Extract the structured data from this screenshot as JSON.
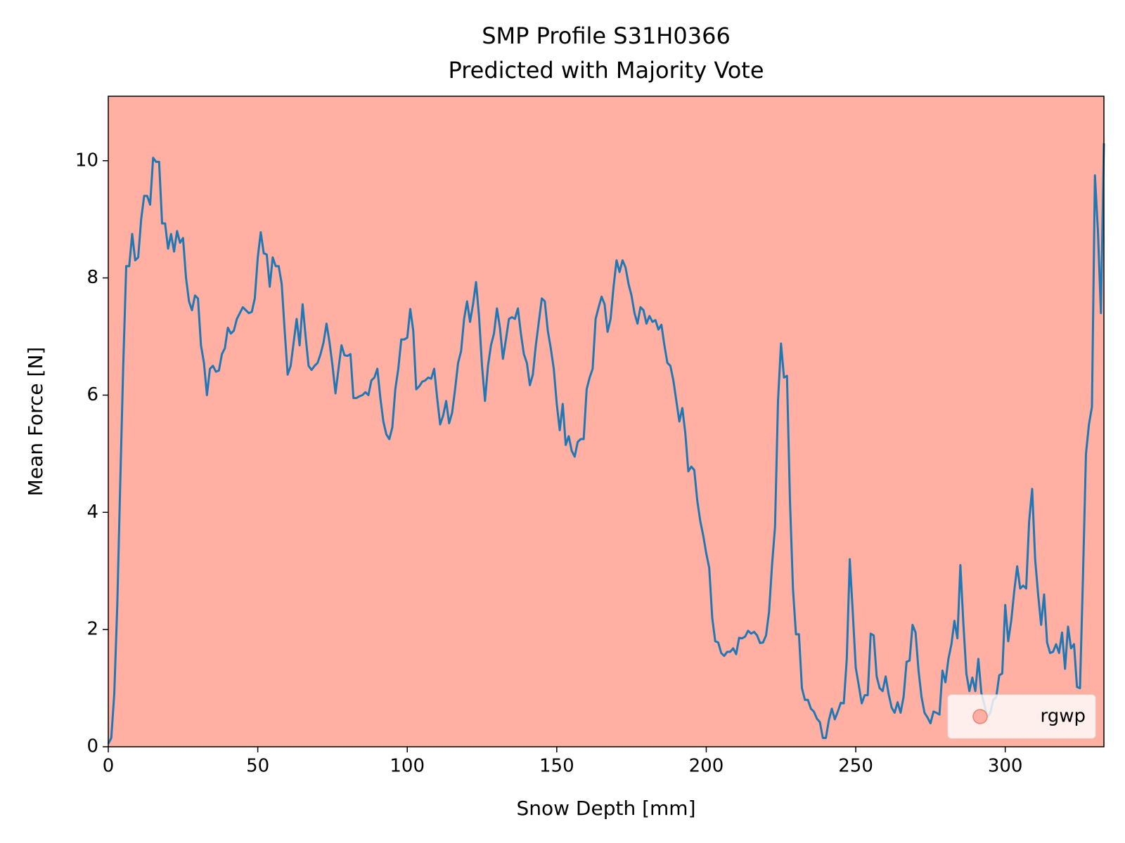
{
  "chart_data": {
    "type": "line",
    "title": "SMP Profile S31H0366",
    "subtitle": "Predicted with Majority Vote",
    "xlabel": "Snow Depth [mm]",
    "ylabel": "Mean Force [N]",
    "xlim": [
      0,
      333
    ],
    "ylim": [
      0,
      11.1
    ],
    "xticks": [
      0,
      50,
      100,
      150,
      200,
      250,
      300
    ],
    "yticks": [
      0,
      2,
      4,
      6,
      8,
      10
    ],
    "background": {
      "name": "rgwp",
      "color": "#ffb0a2"
    },
    "legend": "lower right",
    "x": [
      0,
      1,
      2,
      3,
      4,
      5,
      6,
      7,
      8,
      9,
      10,
      11,
      12,
      13,
      14,
      15,
      16,
      17,
      18,
      19,
      20,
      21,
      22,
      23,
      24,
      25,
      26,
      27,
      28,
      29,
      30,
      31,
      32,
      33,
      34,
      35,
      36,
      37,
      38,
      39,
      40,
      41,
      42,
      43,
      44,
      45,
      46,
      47,
      48,
      49,
      50,
      51,
      52,
      53,
      54,
      55,
      56,
      57,
      58,
      59,
      60,
      61,
      62,
      63,
      64,
      65,
      66,
      67,
      68,
      69,
      70,
      71,
      72,
      73,
      74,
      75,
      76,
      77,
      78,
      79,
      80,
      81,
      82,
      83,
      84,
      85,
      86,
      87,
      88,
      89,
      90,
      91,
      92,
      93,
      94,
      95,
      96,
      97,
      98,
      99,
      100,
      101,
      102,
      103,
      104,
      105,
      106,
      107,
      108,
      109,
      110,
      111,
      112,
      113,
      114,
      115,
      116,
      117,
      118,
      119,
      120,
      121,
      122,
      123,
      124,
      125,
      126,
      127,
      128,
      129,
      130,
      131,
      132,
      133,
      134,
      135,
      136,
      137,
      138,
      139,
      140,
      141,
      142,
      143,
      144,
      145,
      146,
      147,
      148,
      149,
      150,
      151,
      152,
      153,
      154,
      155,
      156,
      157,
      158,
      159,
      160,
      161,
      162,
      163,
      164,
      165,
      166,
      167,
      168,
      169,
      170,
      171,
      172,
      173,
      174,
      175,
      176,
      177,
      178,
      179,
      180,
      181,
      182,
      183,
      184,
      185,
      186,
      187,
      188,
      189,
      190,
      191,
      192,
      193,
      194,
      195,
      196,
      197,
      198,
      199,
      200,
      201,
      202,
      203,
      204,
      205,
      206,
      207,
      208,
      209,
      210,
      211,
      212,
      213,
      214,
      215,
      216,
      217,
      218,
      219,
      220,
      221,
      222,
      223,
      224,
      225,
      226,
      227,
      228,
      229,
      230,
      231,
      232,
      233,
      234,
      235,
      236,
      237,
      238,
      239,
      240,
      241,
      242,
      243,
      244,
      245,
      246,
      247,
      248,
      249,
      250,
      251,
      252,
      253,
      254,
      255,
      256,
      257,
      258,
      259,
      260,
      261,
      262,
      263,
      264,
      265,
      266,
      267,
      268,
      269,
      270,
      271,
      272,
      273,
      274,
      275,
      276,
      277,
      278,
      279,
      280,
      281,
      282,
      283,
      284,
      285,
      286,
      287,
      288,
      289,
      290,
      291,
      292,
      293,
      294,
      295,
      296,
      297,
      298,
      299,
      300,
      301,
      302,
      303,
      304,
      305,
      306,
      307,
      308,
      309,
      310,
      311,
      312,
      313,
      314,
      315,
      316,
      317,
      318,
      319,
      320,
      321,
      322,
      323,
      324,
      325,
      326,
      327,
      328,
      329,
      330,
      331,
      332,
      333
    ],
    "series": [
      {
        "color": "#1f77b4",
        "values": [
          0.05,
          0.15,
          0.9,
          2.4,
          4.5,
          6.5,
          8.2,
          8.2,
          8.75,
          8.3,
          8.35,
          9.0,
          9.4,
          9.4,
          9.25,
          10.05,
          9.98,
          9.98,
          8.93,
          8.93,
          8.5,
          8.75,
          8.45,
          8.8,
          8.6,
          8.68,
          8.0,
          7.6,
          7.45,
          7.7,
          7.65,
          6.85,
          6.55,
          6.0,
          6.45,
          6.5,
          6.4,
          6.42,
          6.7,
          6.8,
          7.15,
          7.05,
          7.1,
          7.3,
          7.4,
          7.5,
          7.45,
          7.4,
          7.42,
          7.65,
          8.35,
          8.78,
          8.42,
          8.4,
          7.85,
          8.35,
          8.2,
          8.2,
          7.9,
          7.1,
          6.35,
          6.5,
          6.9,
          7.3,
          6.85,
          7.55,
          7.0,
          6.5,
          6.43,
          6.5,
          6.55,
          6.7,
          6.9,
          7.22,
          6.9,
          6.5,
          6.03,
          6.45,
          6.85,
          6.68,
          6.67,
          6.7,
          5.95,
          5.95,
          5.98,
          6.0,
          6.05,
          6.0,
          6.25,
          6.3,
          6.45,
          5.95,
          5.55,
          5.33,
          5.25,
          5.45,
          6.1,
          6.45,
          6.95,
          6.95,
          6.98,
          7.47,
          7.1,
          6.1,
          6.15,
          6.23,
          6.25,
          6.3,
          6.28,
          6.45,
          5.95,
          5.5,
          5.65,
          5.9,
          5.52,
          5.7,
          6.1,
          6.55,
          6.75,
          7.3,
          7.6,
          7.25,
          7.55,
          7.93,
          7.35,
          6.5,
          5.9,
          6.5,
          6.85,
          7.05,
          7.48,
          7.15,
          6.62,
          6.95,
          7.3,
          7.33,
          7.3,
          7.48,
          7.05,
          6.7,
          6.55,
          6.17,
          6.35,
          6.85,
          7.25,
          7.65,
          7.6,
          7.1,
          6.8,
          6.45,
          5.85,
          5.4,
          5.85,
          5.15,
          5.3,
          5.05,
          4.95,
          5.2,
          5.25,
          5.25,
          6.1,
          6.3,
          6.45,
          7.3,
          7.5,
          7.68,
          7.55,
          7.08,
          7.3,
          7.85,
          8.3,
          8.1,
          8.3,
          8.18,
          7.9,
          7.7,
          7.4,
          7.22,
          7.5,
          7.45,
          7.22,
          7.35,
          7.25,
          7.28,
          7.12,
          7.2,
          6.85,
          6.55,
          6.5,
          6.25,
          5.9,
          5.55,
          5.78,
          5.35,
          4.7,
          4.78,
          4.72,
          4.2,
          3.85,
          3.6,
          3.3,
          3.05,
          2.2,
          1.8,
          1.78,
          1.6,
          1.55,
          1.62,
          1.62,
          1.68,
          1.58,
          1.86,
          1.85,
          1.88,
          1.98,
          1.93,
          1.96,
          1.9,
          1.77,
          1.78,
          1.9,
          2.3,
          3.1,
          3.75,
          5.9,
          6.88,
          6.3,
          6.33,
          4.2,
          2.7,
          1.92,
          1.92,
          1.0,
          0.8,
          0.8,
          0.65,
          0.6,
          0.48,
          0.42,
          0.15,
          0.15,
          0.45,
          0.65,
          0.47,
          0.6,
          0.75,
          0.74,
          1.5,
          3.2,
          2.3,
          1.35,
          1.05,
          0.74,
          0.88,
          0.88,
          1.93,
          1.9,
          1.2,
          1.0,
          0.95,
          1.2,
          0.9,
          0.67,
          0.58,
          0.76,
          0.58,
          0.85,
          1.45,
          1.47,
          2.08,
          1.95,
          1.3,
          0.85,
          0.58,
          0.5,
          0.4,
          0.6,
          0.58,
          0.55,
          1.3,
          1.1,
          1.5,
          1.75,
          2.15,
          1.85,
          3.1,
          2.1,
          1.25,
          0.95,
          1.18,
          0.95,
          1.5,
          0.92,
          0.72,
          0.5,
          0.58,
          0.8,
          0.85,
          1.22,
          1.25,
          2.42,
          1.8,
          2.15,
          2.65,
          3.08,
          2.7,
          2.75,
          2.7,
          3.85,
          4.4,
          3.2,
          2.6,
          2.08,
          2.6,
          1.78,
          1.6,
          1.62,
          1.75,
          1.6,
          1.95,
          1.33,
          2.05,
          1.68,
          1.75,
          1.02,
          1.0,
          2.9,
          5.0,
          5.5,
          5.8,
          9.75,
          8.8,
          7.4,
          10.3
        ]
      }
    ]
  }
}
